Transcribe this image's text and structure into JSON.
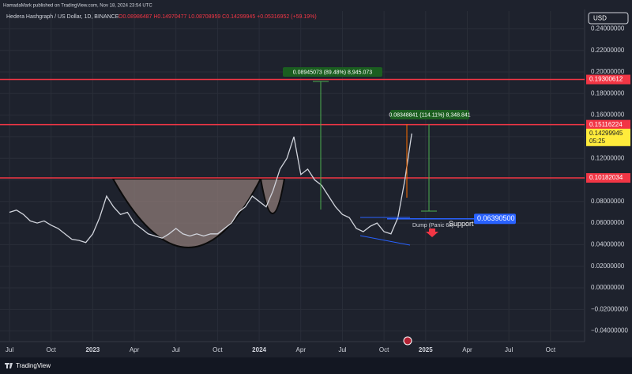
{
  "header": {
    "publisher": "HamadaMark published on TradingView.com, Nov 18, 2024 23:54 UTC"
  },
  "chart_data": {
    "type": "line",
    "title": "Hedera Hashgraph / US Dollar, 1D, BINANCE",
    "ohlc": "O0.08986487 H0.14970477 L0.08708959 C0.14299945 +0.05316952 (+59.19%)",
    "currency": "USD",
    "categories": [
      "Jul",
      null,
      null,
      null,
      null,
      null,
      "Oct",
      null,
      null,
      null,
      null,
      null,
      "2023",
      null,
      null,
      null,
      null,
      null,
      "Apr",
      null,
      null,
      null,
      null,
      null,
      "Jul",
      null,
      null,
      null,
      null,
      null,
      "Oct",
      null,
      null,
      null,
      null,
      null,
      "2024",
      null,
      null,
      null,
      null,
      null,
      "Apr",
      null,
      null,
      null,
      null,
      null,
      "Jul",
      null,
      null,
      null,
      null,
      null,
      "Oct",
      null,
      null,
      null,
      null,
      null,
      "2025",
      null,
      null,
      null,
      null,
      null,
      "Apr",
      null,
      null,
      null,
      null,
      null,
      "Jul",
      null,
      null,
      null,
      null,
      null,
      "Oct",
      null,
      null,
      null,
      null,
      null
    ],
    "values": [
      0.07,
      0.072,
      0.068,
      0.062,
      0.06,
      0.062,
      0.058,
      0.055,
      0.05,
      0.045,
      0.044,
      0.042,
      0.05,
      0.065,
      0.085,
      0.075,
      0.068,
      0.07,
      0.06,
      0.055,
      0.05,
      0.048,
      0.046,
      0.05,
      0.055,
      0.05,
      0.048,
      0.05,
      0.048,
      0.05,
      0.05,
      0.055,
      0.06,
      0.07,
      0.075,
      0.085,
      0.08,
      0.075,
      0.09,
      0.11,
      0.12,
      0.14,
      0.105,
      0.11,
      0.1,
      0.095,
      0.085,
      0.075,
      0.068,
      0.065,
      0.055,
      0.052,
      0.057,
      0.06,
      0.052,
      0.05,
      0.065,
      0.1,
      0.143,
      null,
      null,
      null,
      null,
      null,
      null,
      null,
      null,
      null,
      null,
      null,
      null,
      null,
      null,
      null,
      null,
      null,
      null,
      null,
      null,
      null,
      null,
      null,
      null,
      null
    ],
    "color": "#d1d4dc",
    "ylim": [
      -0.0498,
      0.2564
    ],
    "yticks": [
      {
        "value": 0.24,
        "label": "0.24000000"
      },
      {
        "value": 0.22,
        "label": "0.22000000"
      },
      {
        "value": 0.2,
        "label": "0.20000000"
      },
      {
        "value": 0.18,
        "label": "0.18000000"
      },
      {
        "value": 0.16,
        "label": "0.16000000"
      },
      {
        "value": 0.14,
        "label": "0.14000000"
      },
      {
        "value": 0.12,
        "label": "0.12000000"
      },
      {
        "value": 0.1,
        "label": "0.10000000"
      },
      {
        "value": 0.08,
        "label": "0.08000000"
      },
      {
        "value": 0.06,
        "label": "0.06000000"
      },
      {
        "value": 0.04,
        "label": "0.04000000"
      },
      {
        "value": 0.02,
        "label": "0.02000000"
      },
      {
        "value": 0,
        "label": "0.00000000"
      },
      {
        "value": -0.02,
        "label": "−0.02000000"
      },
      {
        "value": -0.04,
        "label": "−0.04000000"
      }
    ],
    "grid": true,
    "levels": [
      {
        "value": 0.19300612,
        "label": "0.19300612",
        "color": "#f23645"
      },
      {
        "value": 0.15116224,
        "label": "0.15116224",
        "color": "#f23645"
      },
      {
        "value": 0.10182034,
        "label": "0.10182034",
        "color": "#f23645"
      }
    ],
    "last_price": {
      "value": 0.14299945,
      "label": "0.14299945",
      "countdown": "05:25",
      "color": "#ffeb3b"
    },
    "support": {
      "value": 0.063905,
      "label": "0.06390500",
      "text": "Support",
      "color": "#2962ff"
    },
    "annotations": [
      "0.08945073 (89.48%) 8,945.073",
      "0.08348841 (114.11%) 8,348.841",
      "Dump (Panic 6x)"
    ]
  },
  "footer": {
    "brand": "TradingView"
  }
}
